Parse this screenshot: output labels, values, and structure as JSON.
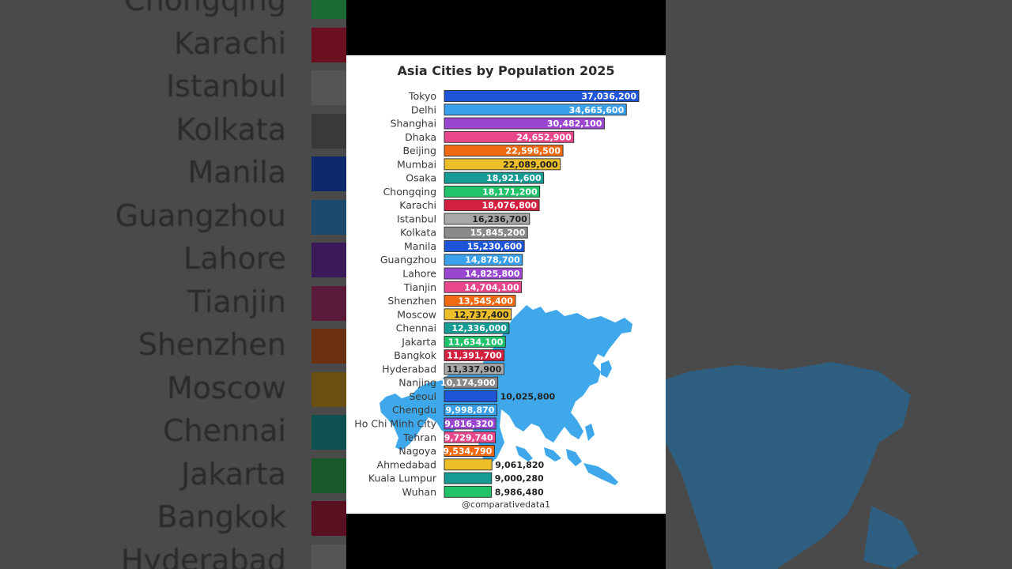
{
  "background": {
    "left_labels": [
      "Chongqing",
      "Karachi",
      "Istanbul",
      "Kolkata",
      "Manila",
      "Guangzhou",
      "Lahore",
      "Tianjin",
      "Shenzhen",
      "Moscow",
      "Chennai",
      "Jakarta",
      "Bangkok",
      "Hyderabad"
    ],
    "left_colors": [
      "#1a6a33",
      "#6a1020",
      "#555555",
      "#3a3a3a",
      "#0f2a6a",
      "#1a4a70",
      "#3a1a5a",
      "#5a1a3a",
      "#6a3010",
      "#6a5010",
      "#0f5050",
      "#1a5a2a",
      "#5a1020",
      "#555555"
    ]
  },
  "watermark": "@comparativedata1",
  "chart_data": {
    "type": "bar",
    "orientation": "horizontal",
    "title": "Asia Cities by Population 2025",
    "xlabel": "",
    "ylabel": "",
    "xlim": [
      0,
      37036200
    ],
    "grid": false,
    "legend": "none",
    "categories": [
      "Tokyo",
      "Delhi",
      "Shanghai",
      "Dhaka",
      "Beijing",
      "Mumbai",
      "Osaka",
      "Chongqing",
      "Karachi",
      "Istanbul",
      "Kolkata",
      "Manila",
      "Guangzhou",
      "Lahore",
      "Tianjin",
      "Shenzhen",
      "Moscow",
      "Chennai",
      "Jakarta",
      "Bangkok",
      "Hyderabad",
      "Nanjing",
      "Seoul",
      "Chengdu",
      "Ho Chi Minh City",
      "Tehran",
      "Nagoya",
      "Ahmedabad",
      "Kuala Lumpur",
      "Wuhan"
    ],
    "values": [
      37036200,
      34665600,
      30482100,
      24652900,
      22596500,
      22089000,
      18921600,
      18171200,
      18076800,
      16236700,
      15845200,
      15230600,
      14878700,
      14825800,
      14704100,
      13545400,
      12737400,
      12336000,
      11634100,
      11391700,
      11337900,
      10174900,
      10025800,
      9998870,
      9816320,
      9729740,
      9534790,
      9061820,
      9000280,
      8986480
    ],
    "value_labels": [
      "37,036,200",
      "34,665,600",
      "30,482,100",
      "24,652,900",
      "22,596,500",
      "22,089,000",
      "18,921,600",
      "18,171,200",
      "18,076,800",
      "16,236,700",
      "15,845,200",
      "15,230,600",
      "14,878,700",
      "14,825,800",
      "14,704,100",
      "13,545,400",
      "12,737,400",
      "12,336,000",
      "11,634,100",
      "11,391,700",
      "11,337,900",
      "10,174,900",
      "10,025,800",
      "9,998,870",
      "9,816,320",
      "9,729,740",
      "9,534,790",
      "9,061,820",
      "9,000,280",
      "8,986,480"
    ],
    "colors": [
      "#1e55d6",
      "#3aa0ea",
      "#9a46d0",
      "#e8478c",
      "#f06a14",
      "#ebbe2a",
      "#159a94",
      "#21c26a",
      "#d2213e",
      "#a8a8a8",
      "#8a8a8a",
      "#1e55d6",
      "#3aa0ea",
      "#9a46d0",
      "#e8478c",
      "#f06a14",
      "#ebbe2a",
      "#159a94",
      "#21c26a",
      "#d2213e",
      "#a8a8a8",
      "#8a8a8a",
      "#1e55d6",
      "#3aa0ea",
      "#9a46d0",
      "#e8478c",
      "#f06a14",
      "#ebbe2a",
      "#159a94",
      "#21c26a"
    ],
    "label_color": [
      "#ffffff",
      "#ffffff",
      "#ffffff",
      "#ffffff",
      "#ffffff",
      "#222222",
      "#ffffff",
      "#ffffff",
      "#ffffff",
      "#222222",
      "#ffffff",
      "#ffffff",
      "#ffffff",
      "#ffffff",
      "#ffffff",
      "#ffffff",
      "#222222",
      "#ffffff",
      "#ffffff",
      "#ffffff",
      "#222222",
      "#ffffff",
      "#222222",
      "#ffffff",
      "#ffffff",
      "#ffffff",
      "#ffffff",
      "#222222",
      "#222222",
      "#222222"
    ],
    "label_outside": [
      false,
      false,
      false,
      false,
      false,
      false,
      false,
      false,
      false,
      false,
      false,
      false,
      false,
      false,
      false,
      false,
      false,
      false,
      false,
      false,
      false,
      false,
      true,
      false,
      false,
      false,
      false,
      true,
      true,
      true
    ]
  }
}
